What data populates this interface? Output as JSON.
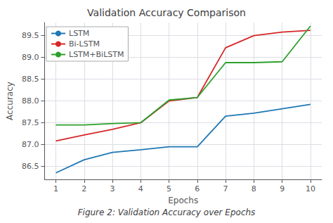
{
  "chart_data": {
    "type": "line",
    "title": "Validation Accuracy Comparison",
    "caption": "Figure 2: Validation Accuracy over Epochs",
    "x_label": "Epochs",
    "y_label": "Accuracy",
    "x": [
      1,
      2,
      3,
      4,
      5,
      6,
      7,
      8,
      9,
      10
    ],
    "series": [
      {
        "name": "LSTM",
        "color": "#1f77b4",
        "values": [
          86.35,
          86.65,
          86.82,
          86.88,
          86.95,
          86.95,
          87.65,
          87.72,
          87.82,
          87.92
        ]
      },
      {
        "name": "Bi-LSTM",
        "color": "#d62728",
        "values": [
          87.08,
          87.22,
          87.35,
          87.5,
          88.0,
          88.08,
          89.22,
          89.5,
          89.58,
          89.62
        ]
      },
      {
        "name": "LSTM+BiLSTM",
        "color": "#2ca02c",
        "values": [
          87.45,
          87.45,
          87.48,
          87.5,
          88.02,
          88.08,
          88.88,
          88.88,
          88.9,
          89.72
        ]
      }
    ],
    "xlim": [
      0.6,
      10.4
    ],
    "xticks": [
      1,
      2,
      3,
      4,
      5,
      6,
      7,
      8,
      9,
      10
    ],
    "ylim": [
      86.2,
      89.8
    ],
    "yticks": [
      86.5,
      {
        "value": 87,
        "label": "87.0"
      },
      87.5,
      {
        "value": 88,
        "label": "88.0"
      },
      88.5,
      {
        "value": 89,
        "label": "89.0"
      },
      89.5
    ],
    "grid": true,
    "legend": "upper left"
  }
}
